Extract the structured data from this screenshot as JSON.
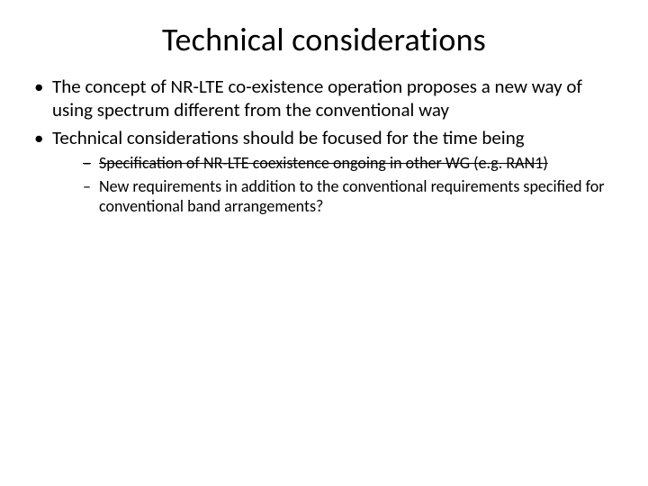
{
  "slide": {
    "title": "Technical considerations",
    "bullets": [
      {
        "text": "The concept of NR-LTE co-existence operation proposes  a new way of using spectrum different from the conventional way"
      },
      {
        "text": "Technical considerations should be focused for the time being",
        "sub": [
          {
            "text": "Specification of NR-LTE coexistence ongoing in other WG (e.g. RAN1)",
            "strike": true
          },
          {
            "text": "New requirements in addition to the conventional requirements specified for conventional band arrangements?",
            "strike": false
          }
        ]
      }
    ]
  },
  "style": {
    "background_color": "#ffffff",
    "text_color": "#000000",
    "title_fontsize": 36,
    "body_fontsize": 21,
    "sub_fontsize": 18,
    "font_family": "Calibri"
  }
}
